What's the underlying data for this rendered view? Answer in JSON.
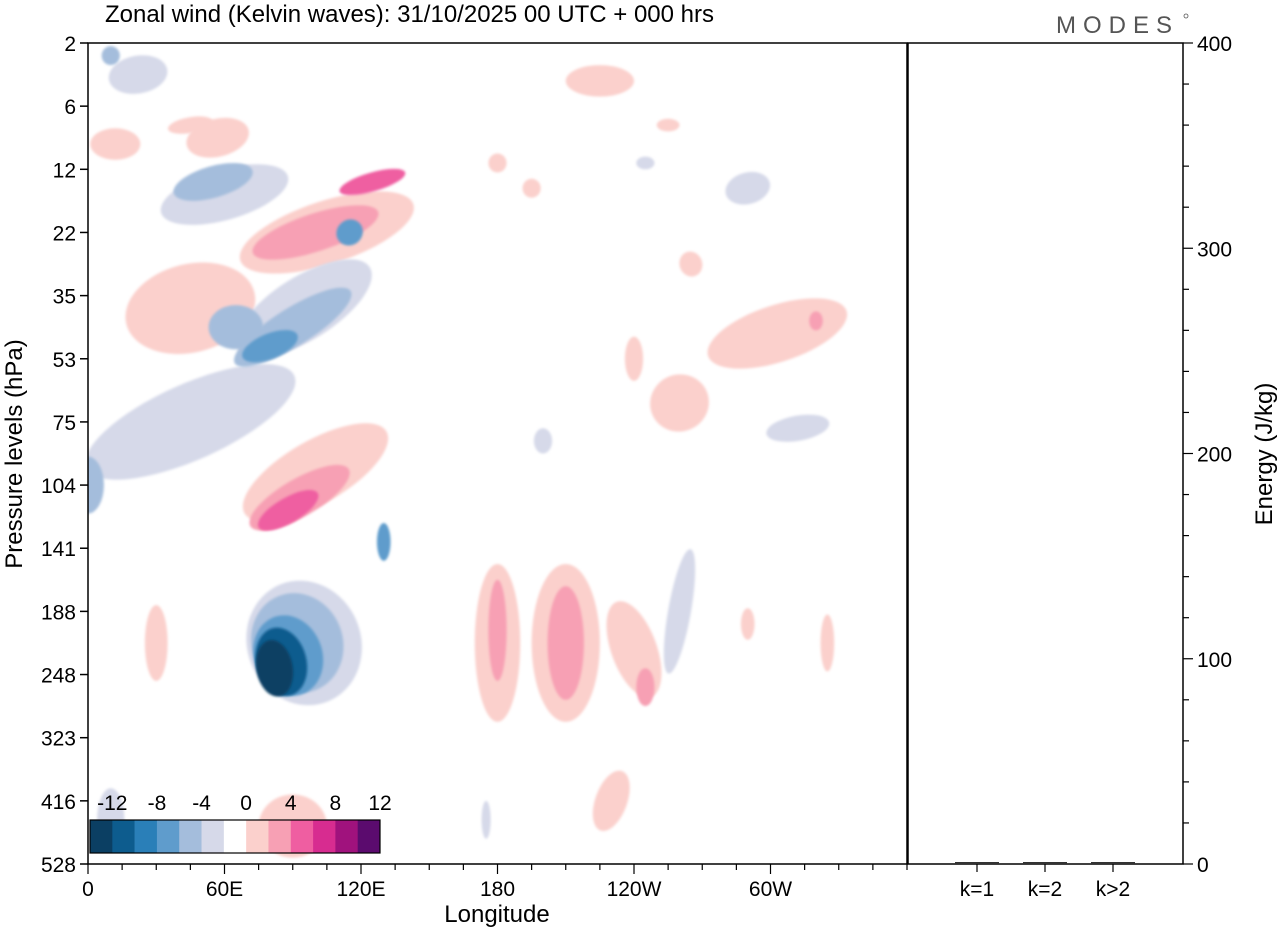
{
  "chart_data": {
    "type": "heatmap",
    "title": "Zonal wind (Kelvin waves):  31/10/2025  00 UTC  + 000 hrs",
    "xlabel": "Longitude",
    "ylabel": "Pressure levels (hPa)",
    "x_ticks": [
      "0",
      "60E",
      "120E",
      "180",
      "120W",
      "60W"
    ],
    "y_ticks": [
      "2",
      "6",
      "12",
      "22",
      "35",
      "53",
      "75",
      "104",
      "141",
      "188",
      "248",
      "323",
      "416",
      "528"
    ],
    "colorbar": {
      "labels": [
        "-12",
        "-8",
        "-4",
        "0",
        "4",
        "8",
        "12"
      ],
      "colors": [
        "#0b3f63",
        "#0d5c8e",
        "#2a7fb8",
        "#5f9ccc",
        "#a4bddc",
        "#d6d9e9",
        "#ffffff",
        "#fbd0cc",
        "#f7a0b4",
        "#ef5ea1",
        "#d72c90",
        "#a0127d",
        "#5b0b6e"
      ]
    },
    "blobs": [
      {
        "lon": 22,
        "lev": 0.5,
        "w": 26,
        "h": 0.6,
        "rot": -10,
        "value": -2
      },
      {
        "lon": 10,
        "lev": 0.2,
        "w": 8,
        "h": 0.3,
        "rot": 0,
        "value": -5
      },
      {
        "lon": 57,
        "lev": 1.5,
        "w": 28,
        "h": 0.6,
        "rot": -14,
        "value": 2
      },
      {
        "lon": 12,
        "lev": 1.6,
        "w": 22,
        "h": 0.5,
        "rot": 0,
        "value": 2
      },
      {
        "lon": 60,
        "lev": 2.4,
        "w": 58,
        "h": 0.8,
        "rot": -16,
        "value": -2
      },
      {
        "lon": 55,
        "lev": 2.2,
        "w": 36,
        "h": 0.5,
        "rot": -16,
        "value": -5
      },
      {
        "lon": 105,
        "lev": 3.0,
        "w": 80,
        "h": 1.0,
        "rot": -18,
        "value": 2
      },
      {
        "lon": 100,
        "lev": 3.0,
        "w": 58,
        "h": 0.6,
        "rot": -18,
        "value": 5
      },
      {
        "lon": 125,
        "lev": 2.2,
        "w": 30,
        "h": 0.3,
        "rot": -16,
        "value": 9
      },
      {
        "lon": 45,
        "lev": 4.2,
        "w": 58,
        "h": 1.4,
        "rot": -14,
        "value": 2
      },
      {
        "lon": 95,
        "lev": 4.2,
        "w": 68,
        "h": 1.0,
        "rot": -32,
        "value": -2
      },
      {
        "lon": 90,
        "lev": 4.5,
        "w": 60,
        "h": 0.6,
        "rot": -32,
        "value": -5
      },
      {
        "lon": 80,
        "lev": 4.8,
        "w": 26,
        "h": 0.4,
        "rot": -22,
        "value": -7
      },
      {
        "lon": 115,
        "lev": 3.0,
        "w": 12,
        "h": 0.4,
        "rot": -40,
        "value": -7
      },
      {
        "lon": 45,
        "lev": 6.0,
        "w": 100,
        "h": 1.2,
        "rot": -24,
        "value": -2
      },
      {
        "lon": 0,
        "lev": 7.0,
        "w": 14,
        "h": 0.9,
        "rot": 0,
        "value": -5
      },
      {
        "lon": 100,
        "lev": 6.8,
        "w": 72,
        "h": 1.0,
        "rot": -30,
        "value": 2
      },
      {
        "lon": 93,
        "lev": 7.2,
        "w": 50,
        "h": 0.6,
        "rot": -30,
        "value": 5
      },
      {
        "lon": 88,
        "lev": 7.4,
        "w": 30,
        "h": 0.4,
        "rot": -30,
        "value": 9
      },
      {
        "lon": 65,
        "lev": 4.5,
        "w": 24,
        "h": 0.7,
        "rot": 0,
        "value": -5
      },
      {
        "lon": 95,
        "lev": 9.5,
        "w": 50,
        "h": 2.0,
        "rot": -22,
        "value": -2
      },
      {
        "lon": 92,
        "lev": 9.5,
        "w": 40,
        "h": 1.6,
        "rot": -22,
        "value": -5
      },
      {
        "lon": 88,
        "lev": 9.7,
        "w": 30,
        "h": 1.3,
        "rot": -20,
        "value": -7
      },
      {
        "lon": 85,
        "lev": 9.8,
        "w": 22,
        "h": 1.1,
        "rot": -15,
        "value": -10
      },
      {
        "lon": 82,
        "lev": 9.9,
        "w": 16,
        "h": 0.9,
        "rot": -10,
        "value": -12
      },
      {
        "lon": 130,
        "lev": 7.9,
        "w": 6,
        "h": 0.6,
        "rot": 0,
        "value": -7
      },
      {
        "lon": 180,
        "lev": 9.5,
        "w": 20,
        "h": 2.5,
        "rot": 0,
        "value": 2
      },
      {
        "lon": 180,
        "lev": 9.3,
        "w": 8,
        "h": 1.6,
        "rot": 0,
        "value": 5
      },
      {
        "lon": 210,
        "lev": 9.5,
        "w": 30,
        "h": 2.5,
        "rot": 0,
        "value": 2
      },
      {
        "lon": 210,
        "lev": 9.5,
        "w": 16,
        "h": 1.8,
        "rot": 0,
        "value": 5
      },
      {
        "lon": 240,
        "lev": 9.6,
        "w": 20,
        "h": 1.6,
        "rot": -20,
        "value": 2
      },
      {
        "lon": 245,
        "lev": 10.2,
        "w": 8,
        "h": 0.6,
        "rot": 0,
        "value": 5
      },
      {
        "lon": 230,
        "lev": 12.0,
        "w": 14,
        "h": 1.0,
        "rot": 20,
        "value": 2
      },
      {
        "lon": 90,
        "lev": 12.4,
        "w": 30,
        "h": 1.0,
        "rot": 0,
        "value": 2
      },
      {
        "lon": 30,
        "lev": 9.5,
        "w": 10,
        "h": 1.2,
        "rot": 0,
        "value": 2
      },
      {
        "lon": 10,
        "lev": 12.3,
        "w": 12,
        "h": 1.0,
        "rot": 0,
        "value": -2
      },
      {
        "lon": 260,
        "lev": 9.0,
        "w": 10,
        "h": 2.0,
        "rot": 10,
        "value": -2
      },
      {
        "lon": 303,
        "lev": 4.6,
        "w": 64,
        "h": 0.9,
        "rot": -18,
        "value": 2
      },
      {
        "lon": 260,
        "lev": 5.7,
        "w": 26,
        "h": 0.9,
        "rot": -24,
        "value": 2
      },
      {
        "lon": 320,
        "lev": 4.4,
        "w": 6,
        "h": 0.3,
        "rot": 0,
        "value": 5
      },
      {
        "lon": 312,
        "lev": 6.1,
        "w": 28,
        "h": 0.4,
        "rot": -10,
        "value": -2
      },
      {
        "lon": 200,
        "lev": 6.3,
        "w": 8,
        "h": 0.4,
        "rot": 0,
        "value": -2
      },
      {
        "lon": 240,
        "lev": 5.0,
        "w": 8,
        "h": 0.7,
        "rot": 0,
        "value": 2
      },
      {
        "lon": 225,
        "lev": 0.6,
        "w": 30,
        "h": 0.5,
        "rot": 0,
        "value": 2
      },
      {
        "lon": 255,
        "lev": 1.3,
        "w": 10,
        "h": 0.2,
        "rot": 0,
        "value": 2
      },
      {
        "lon": 290,
        "lev": 2.3,
        "w": 20,
        "h": 0.5,
        "rot": -15,
        "value": -2
      },
      {
        "lon": 195,
        "lev": 2.3,
        "w": 8,
        "h": 0.3,
        "rot": 0,
        "value": 2
      },
      {
        "lon": 180,
        "lev": 1.9,
        "w": 8,
        "h": 0.3,
        "rot": 0,
        "value": 2
      },
      {
        "lon": 265,
        "lev": 3.5,
        "w": 10,
        "h": 0.4,
        "rot": -20,
        "value": 2
      },
      {
        "lon": 325,
        "lev": 9.5,
        "w": 6,
        "h": 0.9,
        "rot": 0,
        "value": 2
      },
      {
        "lon": 290,
        "lev": 9.2,
        "w": 6,
        "h": 0.5,
        "rot": 0,
        "value": 2
      },
      {
        "lon": 175,
        "lev": 12.3,
        "w": 4,
        "h": 0.6,
        "rot": 0,
        "value": -2
      },
      {
        "lon": 45,
        "lev": 1.3,
        "w": 20,
        "h": 0.25,
        "rot": -10,
        "value": 2
      },
      {
        "lon": 245,
        "lev": 1.9,
        "w": 8,
        "h": 0.2,
        "rot": 0,
        "value": -2
      }
    ],
    "energy_panel": {
      "ylabel": "Energy (J/kg)",
      "y_ticks": [
        "0",
        "100",
        "200",
        "300",
        "400"
      ],
      "ylim": [
        0,
        400
      ],
      "categories": [
        "k=1",
        "k=2",
        "k>2"
      ],
      "values": [
        0.5,
        0.5,
        0.5
      ]
    }
  },
  "logo": {
    "text": "MODES"
  }
}
